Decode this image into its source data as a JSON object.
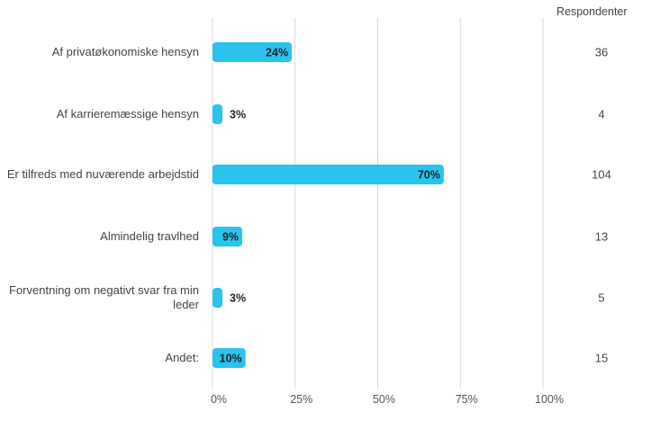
{
  "chart_data": {
    "type": "bar",
    "orientation": "horizontal",
    "categories": [
      "Af privatøkonomiske hensyn",
      "Af karrieremæssige hensyn",
      "Er tilfreds med nuværende arbejdstid",
      "Almindelig travlhed",
      "Forventning om negativt svar fra min leder",
      "Andet:"
    ],
    "values": [
      24,
      3,
      70,
      9,
      3,
      10
    ],
    "value_labels": [
      "24%",
      "3%",
      "70%",
      "9%",
      "3%",
      "10%"
    ],
    "respondents_header": "Respondenter",
    "respondents": [
      "36",
      "4",
      "104",
      "13",
      "5",
      "15"
    ],
    "x_ticks": [
      "0%",
      "25%",
      "50%",
      "75%",
      "100%"
    ],
    "xlim": [
      0,
      100
    ],
    "grid": true,
    "bar_color": "#29c3ee",
    "grid_color": "#d9d9d9"
  }
}
